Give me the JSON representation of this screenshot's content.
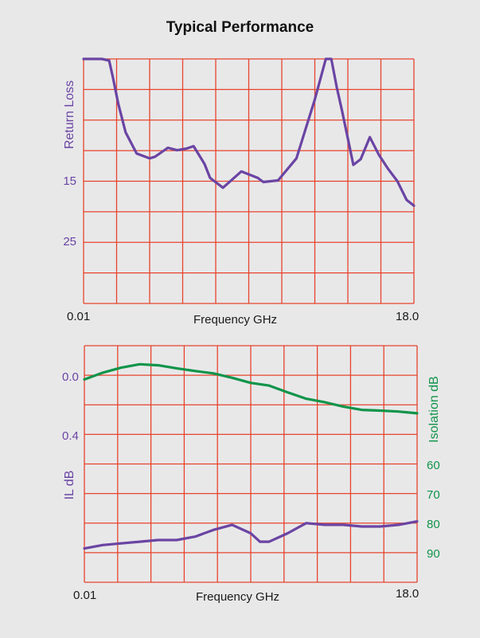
{
  "title": "Typical Performance",
  "colors": {
    "background": "#e8e8e9",
    "grid": "#e8432d",
    "il_curve": "#6a44a3",
    "isolation_curve": "#11944a"
  },
  "chart_data": [
    {
      "type": "line",
      "name": "return-loss-chart",
      "xlabel": "Frequency GHz",
      "ylabel": "Return Loss",
      "x_tick_labels": [
        "0.01",
        "18.0"
      ],
      "y_tick_labels": [
        "15",
        "25"
      ],
      "y_tick_values": [
        15,
        25
      ],
      "xlim": [
        0.01,
        18.0
      ],
      "ylim": [
        35,
        5
      ],
      "grid": true,
      "series": [
        {
          "color": "#6a44a3",
          "x": [
            0.01,
            1.0,
            1.4,
            1.6,
            1.9,
            2.3,
            2.9,
            3.6,
            3.9,
            4.6,
            5.1,
            5.6,
            6.0,
            6.6,
            6.9,
            7.6,
            8.6,
            9.5,
            9.8,
            10.6,
            11.6,
            12.6,
            13.2,
            13.5,
            13.8,
            14.1,
            14.7,
            15.1,
            15.6,
            16.1,
            16.6,
            17.1,
            17.6,
            18.0
          ],
          "y": [
            35.0,
            35.0,
            34.8,
            32.8,
            29.5,
            26.0,
            23.4,
            22.8,
            23.0,
            24.1,
            23.8,
            24.0,
            24.3,
            22.1,
            20.4,
            19.2,
            21.2,
            20.4,
            19.9,
            20.1,
            22.8,
            30.0,
            35.0,
            35.0,
            31.5,
            28.5,
            22.0,
            22.7,
            25.4,
            23.2,
            21.5,
            20.0,
            17.7,
            17.0
          ]
        }
      ]
    },
    {
      "type": "line",
      "name": "insertion-loss-isolation-chart",
      "xlabel": "Frequency GHz",
      "ylabel": "IL dB",
      "y2label": "Isolation dB",
      "x_tick_labels": [
        "0.01",
        "18.0"
      ],
      "y_tick_labels": [
        "0.0",
        "0.4"
      ],
      "y_tick_values": [
        0.0,
        0.4
      ],
      "y2_tick_labels": [
        "60",
        "70",
        "80",
        "90"
      ],
      "y2_tick_values": [
        60,
        70,
        80,
        90
      ],
      "xlim": [
        0.01,
        18.0
      ],
      "ylim": [
        1.2,
        -0.2
      ],
      "y2lim": [
        100,
        30
      ],
      "grid": true,
      "series": [
        {
          "axis": "left",
          "color": "#6a44a3",
          "x": [
            0.01,
            1.0,
            2.0,
            3.0,
            4.0,
            5.0,
            6.0,
            7.0,
            8.0,
            9.0,
            9.5,
            10.0,
            11.0,
            12.0,
            13.0,
            14.0,
            15.0,
            16.0,
            17.0,
            18.0
          ],
          "y": [
            0.0,
            0.02,
            0.03,
            0.04,
            0.05,
            0.05,
            0.07,
            0.11,
            0.14,
            0.09,
            0.04,
            0.04,
            0.09,
            0.15,
            0.14,
            0.14,
            0.13,
            0.13,
            0.14,
            0.16
          ]
        },
        {
          "axis": "right",
          "color": "#11944a",
          "x": [
            0.01,
            1.0,
            2.0,
            3.0,
            4.0,
            5.0,
            6.0,
            7.0,
            8.0,
            9.0,
            10.0,
            11.0,
            12.0,
            13.0,
            14.0,
            15.0,
            16.0,
            17.0,
            18.0
          ],
          "y": [
            90.0,
            92.0,
            93.5,
            94.5,
            94.2,
            93.3,
            92.5,
            91.8,
            90.5,
            89.0,
            88.2,
            86.2,
            84.3,
            83.3,
            82.0,
            81.0,
            80.8,
            80.5,
            80.0
          ]
        }
      ]
    }
  ]
}
